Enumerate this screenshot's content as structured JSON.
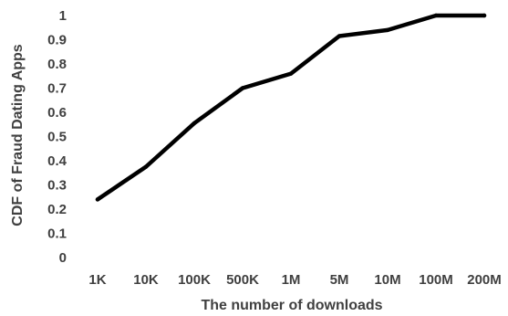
{
  "chart_data": {
    "type": "line",
    "title": "",
    "xlabel": "The number of downloads",
    "ylabel": "CDF of Fraud Dating Apps",
    "categories": [
      "1K",
      "10K",
      "100K",
      "500K",
      "1M",
      "5M",
      "10M",
      "100M",
      "200M"
    ],
    "series": [
      {
        "values": [
          0.24,
          0.375,
          0.555,
          0.7,
          0.76,
          0.915,
          0.94,
          1.0,
          1.0
        ]
      }
    ],
    "ylim": [
      0,
      1
    ],
    "yticks": [
      "0",
      "0.1",
      "0.2",
      "0.3",
      "0.4",
      "0.5",
      "0.6",
      "0.7",
      "0.8",
      "0.9",
      "1"
    ],
    "grid": false,
    "legend": "none",
    "line_color": "#000000"
  }
}
